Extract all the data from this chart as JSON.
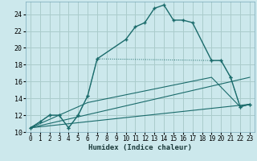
{
  "xlabel": "Humidex (Indice chaleur)",
  "bg_color": "#cce8ec",
  "grid_color": "#aacccc",
  "line_color": "#1a6b6b",
  "xlim": [
    -0.5,
    23.5
  ],
  "ylim": [
    10,
    25.5
  ],
  "xticks": [
    0,
    1,
    2,
    3,
    4,
    5,
    6,
    7,
    8,
    9,
    10,
    11,
    12,
    13,
    14,
    15,
    16,
    17,
    18,
    19,
    20,
    21,
    22,
    23
  ],
  "yticks": [
    10,
    12,
    14,
    16,
    18,
    20,
    22,
    24
  ],
  "series1_x": [
    0,
    1,
    2,
    3,
    4,
    5,
    6,
    7,
    10,
    11,
    12,
    13,
    14,
    15,
    16,
    17,
    19,
    20,
    21,
    22,
    23
  ],
  "series1_y": [
    10.5,
    11.2,
    12.0,
    12.0,
    10.5,
    12.0,
    14.3,
    18.7,
    21.0,
    22.5,
    23.0,
    24.7,
    25.1,
    23.3,
    23.3,
    23.0,
    18.5,
    18.5,
    16.5,
    13.0,
    13.3
  ],
  "series2_x": [
    0,
    2,
    3,
    4,
    5,
    6,
    7,
    19,
    20,
    21,
    22,
    23
  ],
  "series2_y": [
    10.5,
    12.0,
    12.0,
    10.5,
    12.0,
    14.3,
    18.7,
    18.5,
    18.5,
    16.5,
    13.0,
    13.3
  ],
  "series3_x": [
    0,
    6,
    19,
    22,
    23
  ],
  "series3_y": [
    10.5,
    13.5,
    16.5,
    13.0,
    13.3
  ],
  "series4_x": [
    0,
    23
  ],
  "series4_y": [
    10.5,
    13.3
  ],
  "series5_x": [
    0,
    23
  ],
  "series5_y": [
    10.5,
    16.5
  ]
}
